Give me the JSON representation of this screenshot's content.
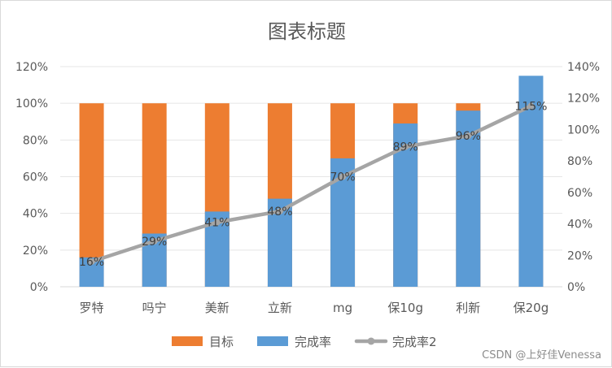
{
  "chart_data": {
    "type": "bar",
    "title": "图表标题",
    "categories": [
      "罗特",
      "吗宁",
      "美新",
      "立新",
      "mg",
      "保10g",
      "利新",
      "保20g"
    ],
    "series": [
      {
        "name": "目标",
        "kind": "bar",
        "axis": "left",
        "color": "#ed7d31",
        "values": [
          100,
          100,
          100,
          100,
          100,
          100,
          100,
          100
        ]
      },
      {
        "name": "完成率",
        "kind": "bar",
        "axis": "left",
        "color": "#5b9bd5",
        "values": [
          16,
          29,
          41,
          48,
          70,
          89,
          96,
          115
        ]
      },
      {
        "name": "完成率2",
        "kind": "line",
        "axis": "right",
        "color": "#a5a5a5",
        "values": [
          16,
          29,
          41,
          48,
          70,
          89,
          96,
          115
        ]
      }
    ],
    "data_labels": [
      "16%",
      "29%",
      "41%",
      "48%",
      "70%",
      "89%",
      "96%",
      "115%"
    ],
    "left_axis": {
      "min": 0,
      "max": 120,
      "step": 20,
      "ticks": [
        "0%",
        "20%",
        "40%",
        "60%",
        "80%",
        "100%",
        "120%"
      ]
    },
    "right_axis": {
      "min": 0,
      "max": 140,
      "step": 20,
      "ticks": [
        "0%",
        "20%",
        "40%",
        "60%",
        "80%",
        "100%",
        "120%",
        "140%"
      ]
    },
    "grid": true,
    "legend": {
      "position": "bottom",
      "entries": [
        "目标",
        "完成率",
        "完成率2"
      ]
    }
  },
  "watermark": "CSDN @上好佳Venessa"
}
